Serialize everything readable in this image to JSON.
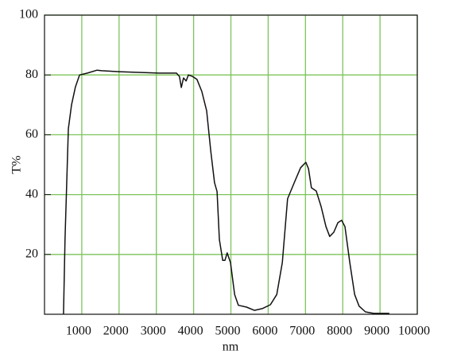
{
  "chart_data": {
    "type": "line",
    "xlabel": "nm",
    "ylabel": "T%",
    "xlim": [
      0,
      10000
    ],
    "ylim": [
      0,
      100
    ],
    "xticks": [
      1000,
      2000,
      3000,
      4000,
      5000,
      6000,
      7000,
      8000,
      9000,
      10000
    ],
    "yticks": [
      20,
      40,
      60,
      80,
      100
    ],
    "grid": true,
    "grid_color": "#7cc45a",
    "series": [
      {
        "color": "#111111",
        "x": [
          510,
          550,
          640,
          725,
          830,
          940,
          1150,
          1410,
          1540,
          2000,
          3070,
          3540,
          3620,
          3670,
          3730,
          3800,
          3860,
          3970,
          4090,
          4220,
          4350,
          4460,
          4560,
          4630,
          4690,
          4780,
          4840,
          4900,
          4990,
          5100,
          5200,
          5420,
          5630,
          5840,
          6060,
          6230,
          6380,
          6520,
          6700,
          6870,
          7010,
          7080,
          7160,
          7290,
          7420,
          7550,
          7650,
          7760,
          7870,
          7970,
          8060,
          8190,
          8320,
          8440,
          8610,
          8830,
          9250
        ],
        "values": [
          0,
          25,
          62,
          70,
          76,
          80,
          80.6,
          81.6,
          81.4,
          81.1,
          80.6,
          80.6,
          79.5,
          75.8,
          79,
          78,
          80,
          79.5,
          78.5,
          74.5,
          68,
          54.5,
          44,
          41,
          25,
          18,
          18,
          20.5,
          17.3,
          6.6,
          3,
          2.4,
          1.3,
          1.9,
          3.2,
          6.6,
          17.3,
          38.6,
          44,
          49,
          50.8,
          48.7,
          42.3,
          41.2,
          36,
          29.3,
          26,
          27.4,
          30.6,
          31.4,
          29.3,
          17.3,
          6.6,
          2.7,
          0.8,
          0.3,
          0.3
        ]
      }
    ]
  }
}
